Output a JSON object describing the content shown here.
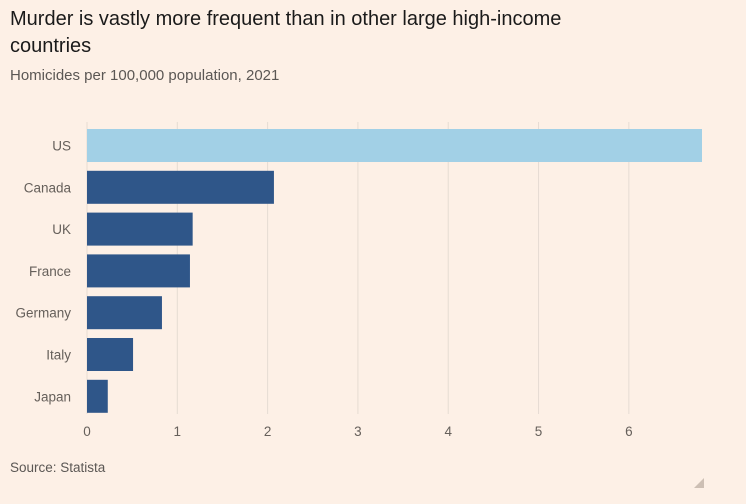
{
  "title": "Murder is vastly more frequent than in other large high-income countries",
  "subtitle": "Homicides per 100,000 population, 2021",
  "source": "Source: Statista",
  "colors": {
    "background": "#fdf0e6",
    "highlight_bar": "#a2d0e6",
    "bar": "#2f5689",
    "grid": "#e6dcd3",
    "tick_text": "#66605b"
  },
  "chart_data": {
    "type": "bar",
    "orientation": "horizontal",
    "categories": [
      "US",
      "Canada",
      "UK",
      "France",
      "Germany",
      "Italy",
      "Japan"
    ],
    "values": [
      6.81,
      2.07,
      1.17,
      1.14,
      0.83,
      0.51,
      0.23
    ],
    "highlight": "US",
    "xlim": [
      0,
      6.81
    ],
    "xticks": [
      0,
      1,
      2,
      3,
      4,
      5,
      6
    ],
    "grid": "vertical",
    "title": "Murder is vastly more frequent than in other large high-income countries",
    "subtitle": "Homicides per 100,000 population, 2021"
  }
}
